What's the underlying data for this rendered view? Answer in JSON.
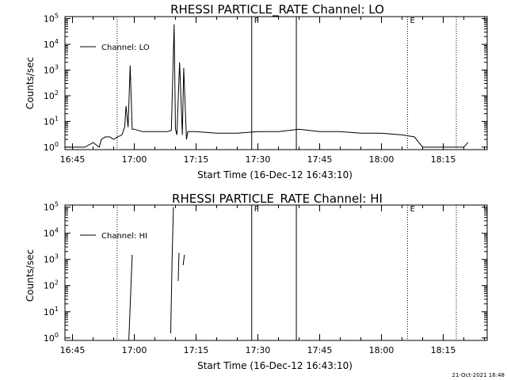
{
  "chart_data": [
    {
      "type": "line",
      "title": "RHESSI PARTICLE_RATE Channel: LO",
      "xlabel": "Start Time (16-Dec-12 16:43:10)",
      "ylabel": "Counts/sec",
      "xlim": [
        "16:43:10",
        "18:25:40"
      ],
      "ylim": [
        0.8,
        120000
      ],
      "yscale": "log",
      "xticks": [
        "16:45",
        "17:00",
        "17:15",
        "17:30",
        "17:45",
        "18:00",
        "18:15"
      ],
      "ytick_labels": [
        [
          "10",
          "0"
        ],
        [
          "10",
          "1"
        ],
        [
          "10",
          "2"
        ],
        [
          "10",
          "3"
        ],
        [
          "10",
          "4"
        ],
        [
          "10",
          "5"
        ]
      ],
      "legend": {
        "label": "Channel: LO",
        "position": "top-left"
      },
      "vlines_solid": [
        "17:28:30",
        "17:39:20"
      ],
      "vlines_dotted": [
        "16:55:50",
        "18:06:20",
        "18:18:10"
      ],
      "markers": [
        {
          "x": "17:28:30",
          "label": "F"
        },
        {
          "x": "18:06:20",
          "label": "E"
        }
      ],
      "series": [
        {
          "name": "Channel: LO",
          "x": [
            "16:43:10",
            "16:46:00",
            "16:48:00",
            "16:50:00",
            "16:51:30",
            "16:52:00",
            "16:53:00",
            "16:54:00",
            "16:55:00",
            "16:56:00",
            "16:57:00",
            "16:57:40",
            "16:58:00",
            "16:58:30",
            "16:59:00",
            "16:59:30",
            "17:00:00",
            "17:02:00",
            "17:05:00",
            "17:07:00",
            "17:08:00",
            "17:09:00",
            "17:09:40",
            "17:10:00",
            "17:10:20",
            "17:11:00",
            "17:11:40",
            "17:12:00",
            "17:12:40",
            "17:13:00",
            "17:14:00",
            "17:15:00",
            "17:20:00",
            "17:25:00",
            "17:30:00",
            "17:35:00",
            "17:40:00",
            "17:45:00",
            "17:50:00",
            "17:55:00",
            "18:00:00",
            "18:05:00",
            "18:08:00",
            "18:10:00",
            "18:12:00",
            "18:14:00",
            "18:16:00",
            "18:18:00",
            "18:20:00",
            "18:21:00"
          ],
          "y": [
            1,
            1,
            1,
            1.5,
            1,
            2,
            2.5,
            2.5,
            2,
            2.5,
            3,
            6,
            40,
            6,
            1500,
            5,
            5,
            4,
            4,
            4,
            4,
            4.5,
            60000,
            5,
            3,
            2000,
            3,
            1200,
            2,
            4,
            4,
            4,
            3.5,
            3.5,
            4,
            4,
            5,
            4,
            4,
            3.5,
            3.5,
            3,
            2.5,
            1,
            1,
            1,
            1,
            1,
            1,
            1.5
          ]
        }
      ]
    },
    {
      "type": "line",
      "title": "RHESSI PARTICLE_RATE Channel: HI",
      "xlabel": "Start Time (16-Dec-12 16:43:10)",
      "ylabel": "Counts/sec",
      "xlim": [
        "16:43:10",
        "18:25:40"
      ],
      "ylim": [
        0.8,
        120000
      ],
      "yscale": "log",
      "xticks": [
        "16:45",
        "17:00",
        "17:15",
        "17:30",
        "17:45",
        "18:00",
        "18:15"
      ],
      "ytick_labels": [
        [
          "10",
          "0"
        ],
        [
          "10",
          "1"
        ],
        [
          "10",
          "2"
        ],
        [
          "10",
          "3"
        ],
        [
          "10",
          "4"
        ],
        [
          "10",
          "5"
        ]
      ],
      "legend": {
        "label": "Channel: HI",
        "position": "top-left"
      },
      "vlines_solid": [
        "17:28:30",
        "17:39:20"
      ],
      "vlines_dotted": [
        "16:55:50",
        "18:06:20",
        "18:18:10"
      ],
      "markers": [
        {
          "x": "17:28:30",
          "label": "F"
        },
        {
          "x": "18:06:20",
          "label": "E"
        }
      ],
      "series": [
        {
          "name": "Channel: HI",
          "segments": [
            {
              "x": [
                "16:58:40",
                "16:59:30"
              ],
              "y": [
                0.8,
                1500
              ]
            },
            {
              "x": [
                "17:08:50",
                "17:09:10",
                "17:09:30"
              ],
              "y": [
                1.5,
                900,
                100000
              ]
            },
            {
              "x": [
                "17:10:40",
                "17:10:50"
              ],
              "y": [
                150,
                1800
              ]
            },
            {
              "x": [
                "17:11:50",
                "17:12:10"
              ],
              "y": [
                600,
                1500
              ]
            }
          ]
        }
      ]
    }
  ],
  "footer": {
    "timestamp": "21-Oct-2021 16:48"
  }
}
